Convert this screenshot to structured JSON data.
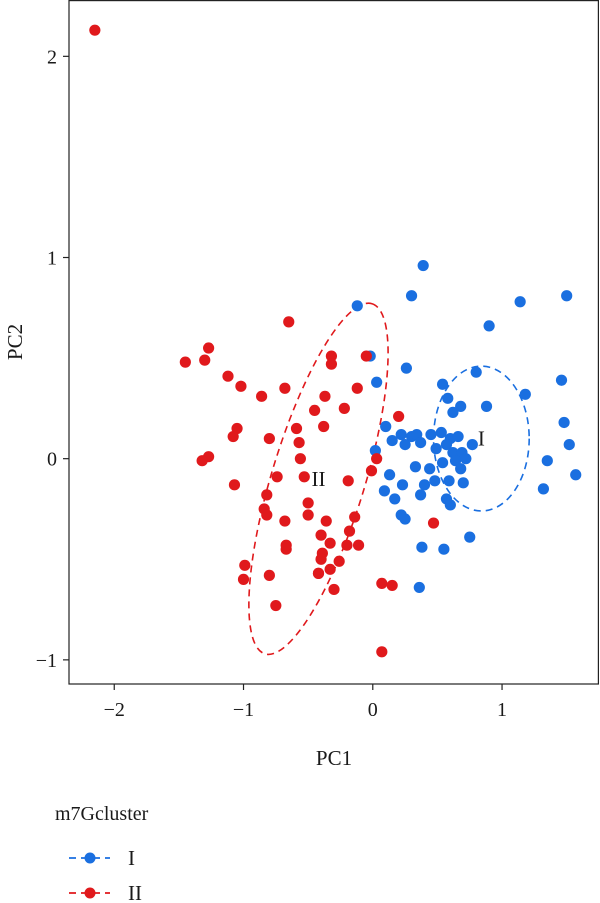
{
  "chart_data": {
    "type": "scatter",
    "xlabel": "PC1",
    "ylabel": "PC2",
    "xlim": [
      -2.35,
      1.75
    ],
    "ylim": [
      -1.12,
      2.28
    ],
    "xticks": [
      -2,
      -1,
      0,
      1
    ],
    "yticks": [
      -1,
      0,
      1,
      2
    ],
    "xtick_labels": [
      "−2",
      "−1",
      "0",
      "1"
    ],
    "ytick_labels": [
      "−1",
      "0",
      "1",
      "2"
    ],
    "grid": false,
    "legend": {
      "title": "m7Gcluster",
      "position": "bottom-left"
    },
    "series": [
      {
        "name": "I",
        "color": "#1a6fe0",
        "ellipse": {
          "cx": 0.84,
          "cy": 0.1,
          "rx": 0.37,
          "ry": 0.36,
          "angle": 0,
          "style": "dashed"
        },
        "points": [
          [
            -0.12,
            0.76
          ],
          [
            0.39,
            0.96
          ],
          [
            0.3,
            0.81
          ],
          [
            1.14,
            0.78
          ],
          [
            1.5,
            0.81
          ],
          [
            0.9,
            0.66
          ],
          [
            -0.02,
            0.51
          ],
          [
            0.03,
            0.38
          ],
          [
            0.26,
            0.45
          ],
          [
            0.54,
            0.37
          ],
          [
            0.8,
            0.43
          ],
          [
            1.46,
            0.39
          ],
          [
            0.58,
            0.3
          ],
          [
            0.68,
            0.26
          ],
          [
            0.88,
            0.26
          ],
          [
            1.18,
            0.32
          ],
          [
            0.62,
            0.23
          ],
          [
            1.48,
            0.18
          ],
          [
            0.1,
            0.16
          ],
          [
            0.22,
            0.12
          ],
          [
            0.3,
            0.11
          ],
          [
            0.34,
            0.12
          ],
          [
            0.45,
            0.12
          ],
          [
            0.53,
            0.13
          ],
          [
            0.6,
            0.1
          ],
          [
            0.66,
            0.11
          ],
          [
            0.57,
            0.07
          ],
          [
            0.49,
            0.05
          ],
          [
            0.62,
            0.03
          ],
          [
            0.69,
            0.03
          ],
          [
            0.77,
            0.07
          ],
          [
            0.54,
            -0.02
          ],
          [
            0.64,
            -0.01
          ],
          [
            0.68,
            -0.05
          ],
          [
            0.72,
            0.0
          ],
          [
            0.15,
            0.09
          ],
          [
            0.02,
            0.04
          ],
          [
            0.25,
            0.07
          ],
          [
            0.37,
            0.08
          ],
          [
            1.52,
            0.07
          ],
          [
            1.35,
            -0.01
          ],
          [
            0.33,
            -0.04
          ],
          [
            0.44,
            -0.05
          ],
          [
            0.13,
            -0.08
          ],
          [
            1.57,
            -0.08
          ],
          [
            0.23,
            -0.13
          ],
          [
            0.4,
            -0.13
          ],
          [
            0.48,
            -0.11
          ],
          [
            0.59,
            -0.11
          ],
          [
            0.7,
            -0.12
          ],
          [
            0.09,
            -0.16
          ],
          [
            1.32,
            -0.15
          ],
          [
            0.37,
            -0.18
          ],
          [
            0.57,
            -0.2
          ],
          [
            0.6,
            -0.23
          ],
          [
            0.17,
            -0.2
          ],
          [
            0.22,
            -0.28
          ],
          [
            0.25,
            -0.3
          ],
          [
            0.75,
            -0.39
          ],
          [
            0.38,
            -0.44
          ],
          [
            0.55,
            -0.45
          ],
          [
            0.36,
            -0.64
          ]
        ]
      },
      {
        "name": "II",
        "color": "#e0191c",
        "ellipse": {
          "cx": -0.42,
          "cy": -0.1,
          "rx": 0.91,
          "ry": 0.36,
          "angle": -73,
          "style": "dashed"
        },
        "points": [
          [
            -2.15,
            2.13
          ],
          [
            -0.65,
            0.68
          ],
          [
            -1.45,
            0.48
          ],
          [
            -1.27,
            0.55
          ],
          [
            -1.3,
            0.49
          ],
          [
            -0.32,
            0.51
          ],
          [
            -0.05,
            0.51
          ],
          [
            -0.32,
            0.47
          ],
          [
            -1.12,
            0.41
          ],
          [
            -1.02,
            0.36
          ],
          [
            -0.68,
            0.35
          ],
          [
            -0.12,
            0.35
          ],
          [
            -0.37,
            0.31
          ],
          [
            -0.86,
            0.31
          ],
          [
            -0.22,
            0.25
          ],
          [
            -0.45,
            0.24
          ],
          [
            0.2,
            0.21
          ],
          [
            -0.38,
            0.16
          ],
          [
            -1.05,
            0.15
          ],
          [
            -0.59,
            0.15
          ],
          [
            -1.08,
            0.11
          ],
          [
            -0.8,
            0.1
          ],
          [
            -0.57,
            0.08
          ],
          [
            -1.27,
            0.01
          ],
          [
            -1.32,
            -0.01
          ],
          [
            -0.56,
            0.0
          ],
          [
            0.03,
            0.0
          ],
          [
            -0.01,
            -0.06
          ],
          [
            -0.53,
            -0.09
          ],
          [
            -0.19,
            -0.11
          ],
          [
            -1.07,
            -0.13
          ],
          [
            -0.74,
            -0.09
          ],
          [
            -0.82,
            -0.18
          ],
          [
            -0.5,
            -0.22
          ],
          [
            -0.84,
            -0.25
          ],
          [
            -0.5,
            -0.28
          ],
          [
            -0.82,
            -0.28
          ],
          [
            -0.68,
            -0.31
          ],
          [
            -0.36,
            -0.31
          ],
          [
            -0.14,
            -0.29
          ],
          [
            -0.4,
            -0.38
          ],
          [
            -0.33,
            -0.42
          ],
          [
            -0.18,
            -0.36
          ],
          [
            -0.39,
            -0.47
          ],
          [
            -0.2,
            -0.43
          ],
          [
            -0.11,
            -0.43
          ],
          [
            -0.67,
            -0.45
          ],
          [
            0.47,
            -0.32
          ],
          [
            -0.67,
            -0.43
          ],
          [
            -0.4,
            -0.5
          ],
          [
            -0.42,
            -0.57
          ],
          [
            -0.26,
            -0.51
          ],
          [
            -0.33,
            -0.55
          ],
          [
            -0.99,
            -0.53
          ],
          [
            -1.0,
            -0.6
          ],
          [
            -0.42,
            -0.57
          ],
          [
            -0.3,
            -0.65
          ],
          [
            0.07,
            -0.62
          ],
          [
            0.15,
            -0.63
          ],
          [
            -0.8,
            -0.58
          ],
          [
            -0.75,
            -0.73
          ],
          [
            0.07,
            -0.96
          ]
        ]
      }
    ]
  }
}
